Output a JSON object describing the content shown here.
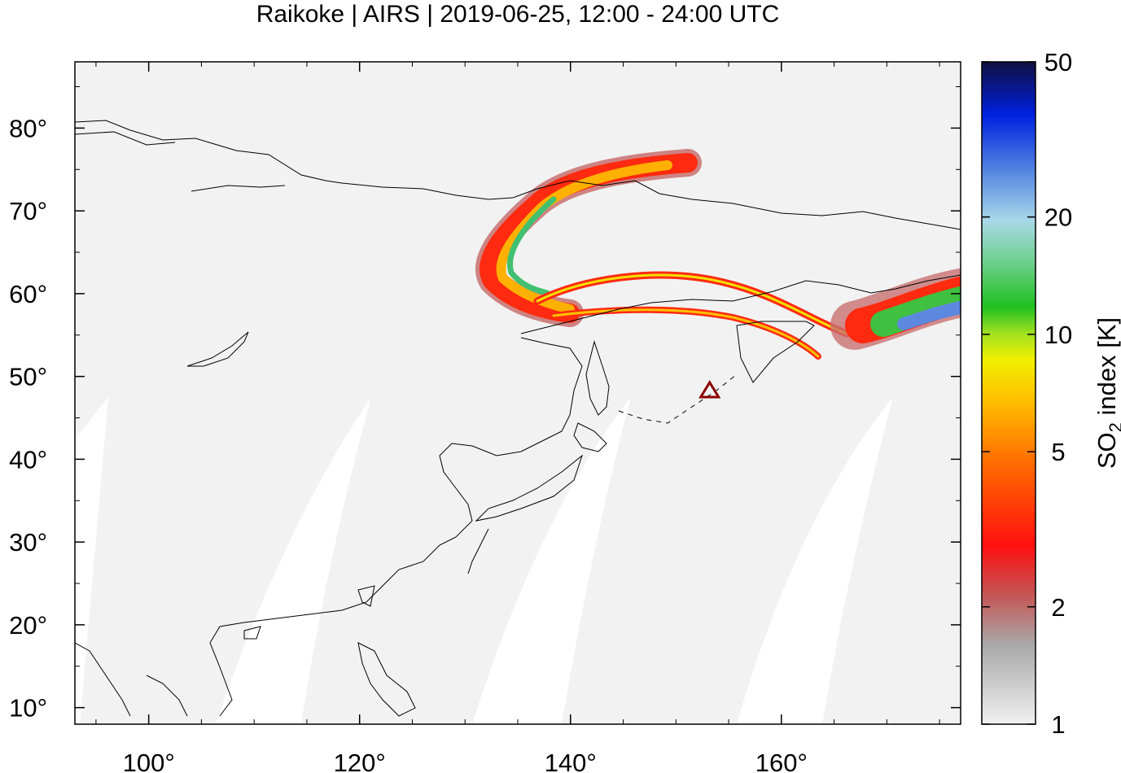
{
  "title": "Raikoke | AIRS | 2019-06-25, 12:00 - 24:00 UTC",
  "map": {
    "lon_range": [
      93,
      177
    ],
    "lat_range": [
      8,
      88
    ],
    "lat_ticks": [
      {
        "value": 80,
        "label": "80°"
      },
      {
        "value": 70,
        "label": "70°"
      },
      {
        "value": 60,
        "label": "60°"
      },
      {
        "value": 50,
        "label": "50°"
      },
      {
        "value": 40,
        "label": "40°"
      },
      {
        "value": 30,
        "label": "30°"
      },
      {
        "value": 20,
        "label": "20°"
      },
      {
        "value": 10,
        "label": "10°"
      }
    ],
    "lon_ticks": [
      {
        "value": 100,
        "label": "100°"
      },
      {
        "value": 120,
        "label": "120°"
      },
      {
        "value": 140,
        "label": "140°"
      },
      {
        "value": 160,
        "label": "160°"
      }
    ],
    "volcano": {
      "lon": 153.2,
      "lat": 48.3,
      "color": "#8b0000"
    },
    "background_color": "#f2f2f2",
    "gap_color": "#ffffff"
  },
  "colorbar": {
    "label_main": "SO",
    "label_sub": "2",
    "label_rest": " index [K]",
    "scale": "log",
    "range": [
      1,
      50
    ],
    "ticks": [
      {
        "value": 50,
        "label": "50"
      },
      {
        "value": 20,
        "label": "20"
      },
      {
        "value": 10,
        "label": "10"
      },
      {
        "value": 5,
        "label": "5"
      },
      {
        "value": 2,
        "label": "2"
      },
      {
        "value": 1,
        "label": "1"
      }
    ]
  }
}
